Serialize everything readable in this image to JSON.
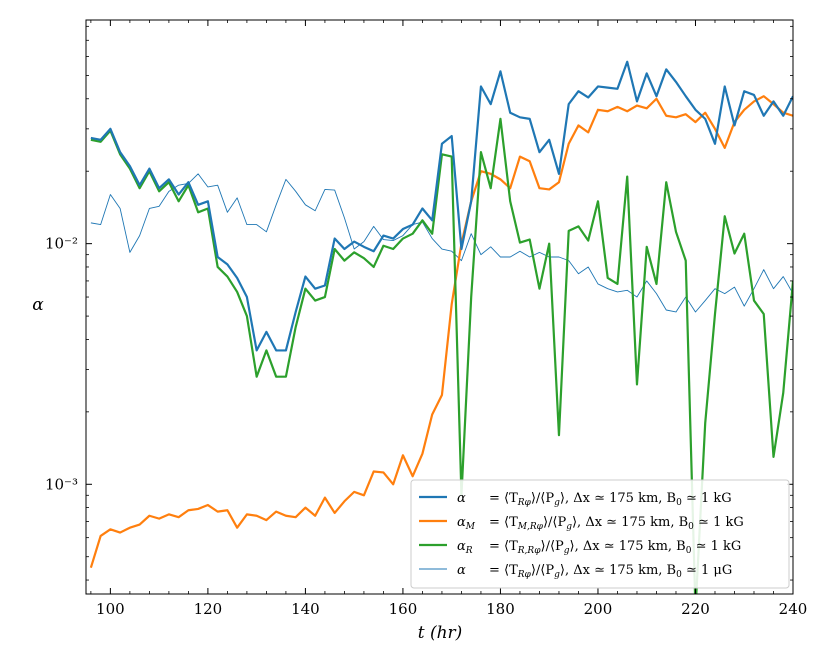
{
  "chart_data": {
    "type": "line",
    "title": "",
    "xlabel": "t (hr)",
    "ylabel": "α",
    "xlim": [
      95,
      240
    ],
    "ylim": [
      0.00035,
      0.085
    ],
    "yscale": "log",
    "grid": false,
    "legend_position": "bottom-right",
    "x_ticks": [
      100,
      120,
      140,
      160,
      180,
      200,
      220,
      240
    ],
    "x_tick_labels": [
      "100",
      "120",
      "140",
      "160",
      "180",
      "200",
      "220",
      "240"
    ],
    "y_ticks": [
      0.001,
      0.01
    ],
    "y_tick_labels": [
      "10⁻³",
      "10⁻²"
    ],
    "x": [
      96,
      98,
      100,
      102,
      104,
      106,
      108,
      110,
      112,
      114,
      116,
      118,
      120,
      122,
      124,
      126,
      128,
      130,
      132,
      134,
      136,
      138,
      140,
      142,
      144,
      146,
      148,
      150,
      152,
      154,
      156,
      158,
      160,
      162,
      164,
      166,
      168,
      170,
      172,
      174,
      176,
      178,
      180,
      182,
      184,
      186,
      188,
      190,
      192,
      194,
      196,
      198,
      200,
      202,
      204,
      206,
      208,
      210,
      212,
      214,
      216,
      218,
      220,
      222,
      224,
      226,
      228,
      230,
      232,
      234,
      236,
      238,
      240
    ],
    "series": [
      {
        "name": "α = ⟨T_Rφ⟩/⟨P_g⟩, Δx ≃ 175 km, B₀ ≃ 1 kG",
        "color": "#1f77b4",
        "linewidth": 2.2,
        "values": [
          0.0275,
          0.027,
          0.03,
          0.024,
          0.021,
          0.0175,
          0.0205,
          0.017,
          0.0185,
          0.016,
          0.018,
          0.0145,
          0.015,
          0.0088,
          0.0082,
          0.0072,
          0.006,
          0.0036,
          0.0043,
          0.0036,
          0.0036,
          0.0052,
          0.0073,
          0.0065,
          0.0067,
          0.0105,
          0.0095,
          0.0102,
          0.0097,
          0.0093,
          0.0108,
          0.0105,
          0.0115,
          0.012,
          0.014,
          0.0125,
          0.026,
          0.028,
          0.0095,
          0.015,
          0.045,
          0.038,
          0.052,
          0.035,
          0.0335,
          0.033,
          0.024,
          0.027,
          0.0195,
          0.038,
          0.043,
          0.0405,
          0.045,
          0.0445,
          0.044,
          0.057,
          0.039,
          0.051,
          0.041,
          0.053,
          0.047,
          0.041,
          0.036,
          0.033,
          0.026,
          0.045,
          0.031,
          0.043,
          0.0415,
          0.034,
          0.039,
          0.034,
          0.041
        ]
      },
      {
        "name": "α_M = ⟨T_M,Rφ⟩/⟨P_g⟩, Δx ≃ 175 km, B₀ ≃ 1 kG",
        "color": "#ff7f0e",
        "linewidth": 2.2,
        "values": [
          0.00045,
          0.00061,
          0.00065,
          0.00063,
          0.00066,
          0.00068,
          0.00074,
          0.00072,
          0.00075,
          0.00073,
          0.00078,
          0.00079,
          0.00082,
          0.00077,
          0.00078,
          0.00066,
          0.00075,
          0.00074,
          0.00071,
          0.00077,
          0.00074,
          0.00073,
          0.0008,
          0.00074,
          0.00088,
          0.00076,
          0.00085,
          0.00093,
          0.0009,
          0.00113,
          0.00112,
          0.001,
          0.00132,
          0.00108,
          0.00134,
          0.00195,
          0.00235,
          0.0056,
          0.01,
          0.015,
          0.02,
          0.0195,
          0.0185,
          0.017,
          0.023,
          0.022,
          0.017,
          0.0168,
          0.018,
          0.026,
          0.031,
          0.029,
          0.036,
          0.0355,
          0.037,
          0.0355,
          0.0375,
          0.0365,
          0.04,
          0.034,
          0.0335,
          0.0345,
          0.032,
          0.035,
          0.03,
          0.025,
          0.032,
          0.036,
          0.039,
          0.041,
          0.038,
          0.035,
          0.034
        ]
      },
      {
        "name": "α_R = ⟨T_R,Rφ⟩/⟨P_g⟩, Δx ≃ 175 km, B₀ ≃ 1 kG",
        "color": "#2ca02c",
        "linewidth": 2.2,
        "values": [
          0.027,
          0.0265,
          0.0295,
          0.0235,
          0.0205,
          0.017,
          0.02,
          0.0165,
          0.018,
          0.015,
          0.0175,
          0.0135,
          0.014,
          0.008,
          0.0073,
          0.0063,
          0.005,
          0.0028,
          0.0036,
          0.0028,
          0.0028,
          0.0045,
          0.0065,
          0.0058,
          0.006,
          0.0095,
          0.0085,
          0.0092,
          0.0087,
          0.008,
          0.0098,
          0.0095,
          0.0105,
          0.011,
          0.0125,
          0.011,
          0.0235,
          0.023,
          0.0009,
          0.006,
          0.024,
          0.017,
          0.033,
          0.015,
          0.0101,
          0.0104,
          0.0065,
          0.01,
          0.0016,
          0.0113,
          0.0118,
          0.0103,
          0.015,
          0.0072,
          0.0068,
          0.019,
          0.0026,
          0.0097,
          0.0068,
          0.018,
          0.0112,
          0.0085,
          0.0003,
          0.0018,
          0.0051,
          0.013,
          0.0091,
          0.011,
          0.0058,
          0.0051,
          0.0013,
          0.0024,
          0.007
        ]
      },
      {
        "name": "α = ⟨T_Rφ⟩/⟨P_g⟩, Δx ≃ 175 km, B₀ ≃ 1 μG",
        "color": "#1f77b4",
        "linewidth": 0.9,
        "values": [
          0.0122,
          0.012,
          0.016,
          0.014,
          0.0092,
          0.0108,
          0.014,
          0.0143,
          0.0165,
          0.0175,
          0.0178,
          0.0195,
          0.0172,
          0.0175,
          0.0135,
          0.0155,
          0.012,
          0.012,
          0.0112,
          0.0145,
          0.0185,
          0.0165,
          0.0145,
          0.0137,
          0.0168,
          0.0167,
          0.0128,
          0.0095,
          0.0102,
          0.0118,
          0.0104,
          0.0103,
          0.0108,
          0.012,
          0.0123,
          0.0105,
          0.0095,
          0.0093,
          0.0085,
          0.011,
          0.009,
          0.0097,
          0.0088,
          0.0088,
          0.0093,
          0.0088,
          0.0092,
          0.0088,
          0.0088,
          0.0085,
          0.0075,
          0.008,
          0.0068,
          0.0065,
          0.0063,
          0.0064,
          0.006,
          0.007,
          0.0062,
          0.0053,
          0.0052,
          0.006,
          0.0052,
          0.0058,
          0.0065,
          0.0062,
          0.0066,
          0.0055,
          0.0065,
          0.0078,
          0.0065,
          0.0073,
          0.0062
        ]
      }
    ],
    "legend": {
      "entries": [
        {
          "lhs": "α",
          "rhs": "= ⟨T",
          "sub": "Rφ",
          "rest": "⟩/⟨P",
          "sub2": "g",
          "tail": "⟩,    Δx ≃ 175 km, B",
          "b0": "0",
          "end": " ≃ 1 kG"
        },
        {
          "lhs": "α",
          "lhs_sub": "M",
          "rhs": "= ⟨T",
          "sub": "M,Rφ",
          "rest": "⟩/⟨P",
          "sub2": "g",
          "tail": "⟩, Δx ≃ 175 km, B",
          "b0": "0",
          "end": " ≃ 1 kG"
        },
        {
          "lhs": "α",
          "lhs_sub": "R",
          "rhs": "= ⟨T",
          "sub": "R,Rφ",
          "rest": "⟩/⟨P",
          "sub2": "g",
          "tail": "⟩, Δx ≃ 175 km, B",
          "b0": "0",
          "end": " ≃ 1 kG"
        },
        {
          "lhs": "α",
          "rhs": "= ⟨T",
          "sub": "Rφ",
          "rest": "⟩/⟨P",
          "sub2": "g",
          "tail": "⟩,    Δx ≃ 175 km, B",
          "b0": "0",
          "end": " ≃ 1 μG"
        }
      ]
    }
  }
}
